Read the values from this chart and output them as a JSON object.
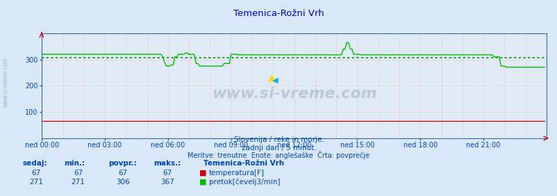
{
  "title": "Temenica-Rožni Vrh",
  "bg_color": "#d8e8f8",
  "plot_bg_color": "#e0eaf5",
  "grid_color_minor": "#ffaaaa",
  "grid_color_major": "#ffaaaa",
  "title_color": "#0000cc",
  "tick_color": "#0044aa",
  "text_color": "#0044aa",
  "watermark": "www.si-vreme.com",
  "subtitle1": "Slovenija / reke in morje.",
  "subtitle2": "zadnji dan / 5 minut.",
  "subtitle3": "Meritve: trenutne  Enote: anglešaške  Črta: povprečje",
  "xlabel_vals": [
    "ned 00:00",
    "ned 03:00",
    "ned 06:00",
    "ned 09:00",
    "ned 12:00",
    "ned 15:00",
    "ned 18:00",
    "ned 21:00"
  ],
  "ylabel_vals": [
    100,
    200,
    300
  ],
  "ylim": [
    0,
    400
  ],
  "xlim_max": 288,
  "avg_pretok": 306,
  "temp_color": "#cc0000",
  "pretok_color": "#00bb00",
  "avg_color": "#009900",
  "sedaj_label": "sedaj:",
  "min_label": "min.:",
  "povpr_label": "povpr.:",
  "maks_label": "maks.:",
  "temp_sedaj": 67,
  "temp_min": 67,
  "temp_povpr": 67,
  "temp_maks": 67,
  "pretok_sedaj": 271,
  "pretok_min": 271,
  "pretok_povpr": 306,
  "pretok_maks": 367,
  "legend_title": "Temenica-Rožni Vrh",
  "legend_temp": "temperatura[F]",
  "legend_pretok": "pretok[čevelj3/min]",
  "watermark_color": "#aabbcc",
  "left_label": "www.si-vreme.com"
}
